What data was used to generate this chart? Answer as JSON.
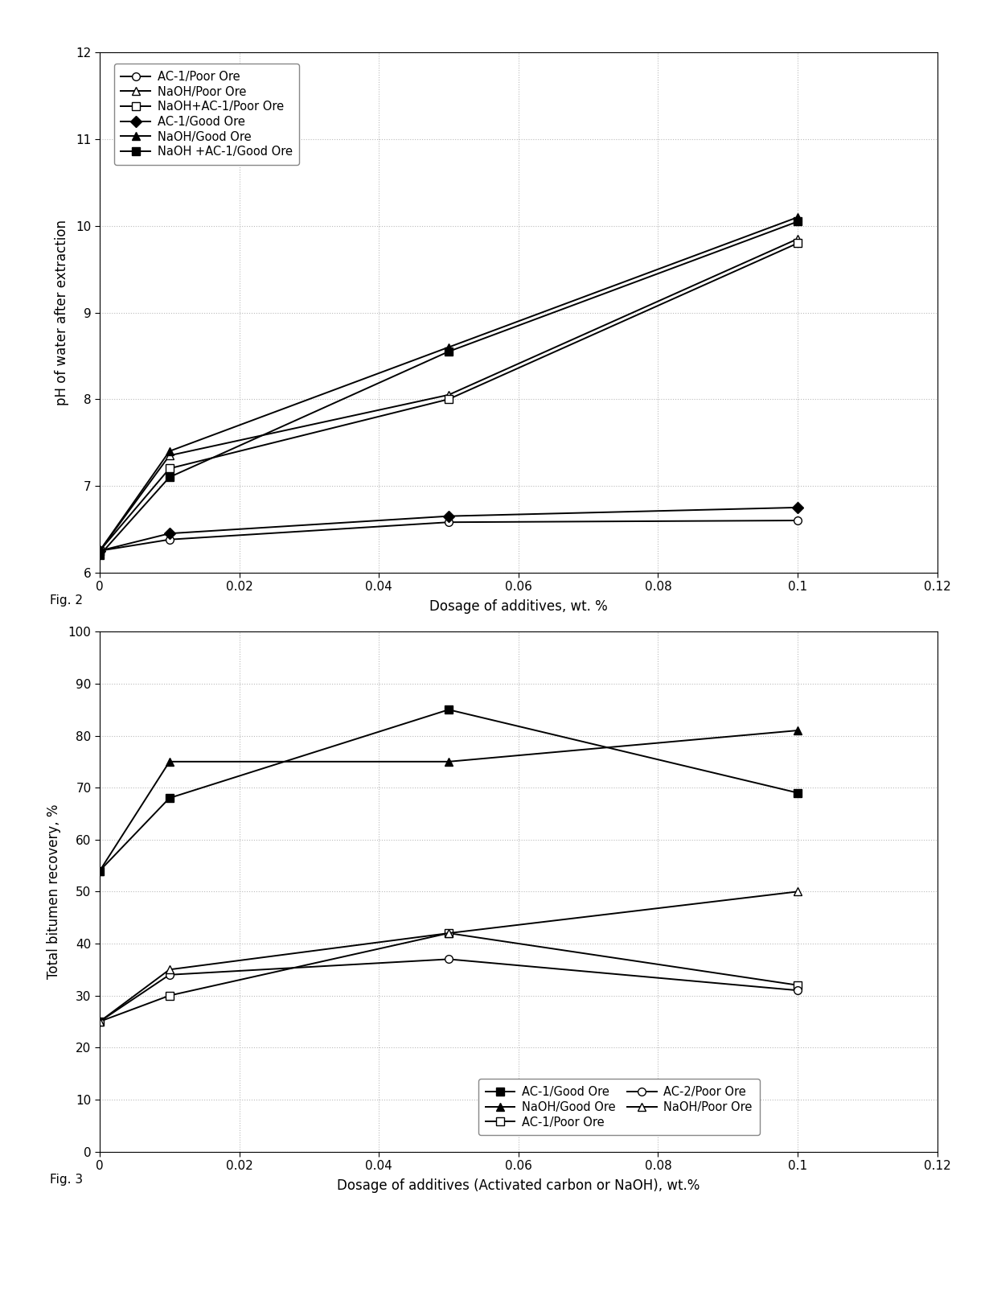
{
  "fig2": {
    "x": [
      0,
      0.01,
      0.05,
      0.1
    ],
    "series": [
      {
        "label": "AC-1/Poor Ore",
        "values": [
          6.25,
          6.38,
          6.58,
          6.6
        ],
        "marker": "o",
        "filled": false
      },
      {
        "label": "NaOH/Poor Ore",
        "values": [
          6.25,
          7.35,
          8.05,
          9.85
        ],
        "marker": "^",
        "filled": false
      },
      {
        "label": "NaOH+AC-1/Poor Ore",
        "values": [
          6.25,
          7.2,
          8.0,
          9.8
        ],
        "marker": "s",
        "filled": false
      },
      {
        "label": "AC-1/Good Ore",
        "values": [
          6.25,
          6.45,
          6.65,
          6.75
        ],
        "marker": "D",
        "filled": true
      },
      {
        "label": "NaOH/Good Ore",
        "values": [
          6.25,
          7.4,
          8.6,
          10.1
        ],
        "marker": "^",
        "filled": true
      },
      {
        "label": "NaOH +AC-1/Good Ore",
        "values": [
          6.2,
          7.1,
          8.55,
          10.05
        ],
        "marker": "s",
        "filled": true
      }
    ],
    "xlabel": "Dosage of additives, wt. %",
    "ylabel": "pH of water after extraction",
    "xlim": [
      0,
      0.12
    ],
    "ylim": [
      6,
      12
    ],
    "yticks": [
      6,
      7,
      8,
      9,
      10,
      11,
      12
    ],
    "xticks": [
      0,
      0.02,
      0.04,
      0.06,
      0.08,
      0.1,
      0.12
    ],
    "xtick_labels": [
      "0",
      "0.02",
      "0.04",
      "0.06",
      "0.08",
      "0.1",
      "0.12"
    ],
    "fig_label": "Fig. 2"
  },
  "fig3": {
    "x": [
      0,
      0.01,
      0.05,
      0.1
    ],
    "series": [
      {
        "label": "AC-1/Good Ore",
        "values": [
          54,
          68,
          85,
          69
        ],
        "marker": "s",
        "filled": true
      },
      {
        "label": "NaOH/Good Ore",
        "values": [
          54,
          75,
          75,
          81
        ],
        "marker": "^",
        "filled": true
      },
      {
        "label": "AC-1/Poor Ore",
        "values": [
          25,
          30,
          42,
          32
        ],
        "marker": "s",
        "filled": false
      },
      {
        "label": "AC-2/Poor Ore",
        "values": [
          25,
          34,
          37,
          31
        ],
        "marker": "o",
        "filled": false
      },
      {
        "label": "NaOH/Poor Ore",
        "values": [
          25,
          35,
          42,
          50
        ],
        "marker": "^",
        "filled": false
      }
    ],
    "xlabel": "Dosage of additives (Activated carbon or NaOH), wt.%",
    "ylabel": "Total bitumen recovery, %",
    "xlim": [
      0,
      0.12
    ],
    "ylim": [
      0,
      100
    ],
    "yticks": [
      0,
      10,
      20,
      30,
      40,
      50,
      60,
      70,
      80,
      90,
      100
    ],
    "xticks": [
      0,
      0.02,
      0.04,
      0.06,
      0.08,
      0.1,
      0.12
    ],
    "xtick_labels": [
      "0",
      "0.02",
      "0.04",
      "0.06",
      "0.08",
      "0.1",
      "0.12"
    ],
    "fig_label": "Fig. 3"
  },
  "background_color": "#ffffff",
  "grid_color": "#bbbbbb"
}
